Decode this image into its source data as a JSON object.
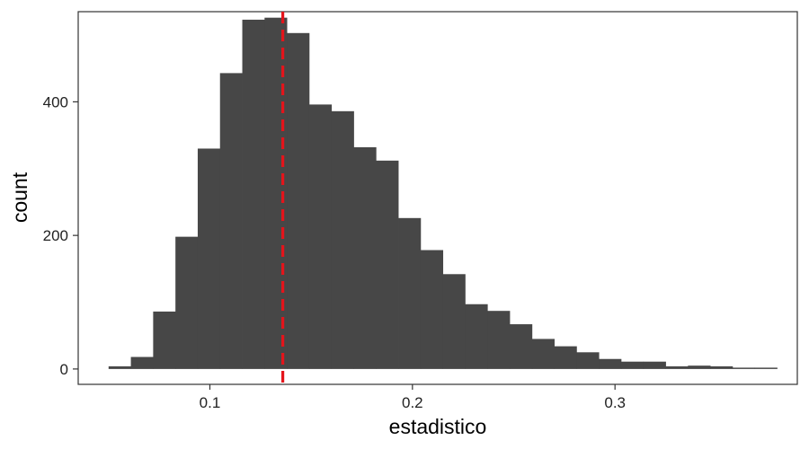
{
  "chart_data": {
    "type": "bar",
    "subtype": "histogram",
    "title": "",
    "xlabel": "estadistico",
    "ylabel": "count",
    "xlim": [
      0.035,
      0.39
    ],
    "ylim": [
      -23,
      535
    ],
    "x_ticks": [
      {
        "value": 0.1,
        "label": "0.1"
      },
      {
        "value": 0.2,
        "label": "0.2"
      },
      {
        "value": 0.3,
        "label": "0.3"
      }
    ],
    "y_ticks": [
      {
        "value": 0,
        "label": "0"
      },
      {
        "value": 200,
        "label": "200"
      },
      {
        "value": 400,
        "label": "400"
      }
    ],
    "bin_width": 0.011,
    "bin_start": 0.05,
    "counts": [
      4,
      18,
      86,
      198,
      330,
      443,
      523,
      526,
      503,
      396,
      386,
      332,
      312,
      226,
      178,
      142,
      97,
      87,
      67,
      45,
      34,
      25,
      15,
      11,
      11,
      4,
      5,
      4,
      2,
      2
    ],
    "bar_color": "#474747",
    "reference_line": {
      "x": 0.136,
      "color": "#e4141b",
      "style": "dashed"
    },
    "grid": false,
    "legend": "none"
  }
}
